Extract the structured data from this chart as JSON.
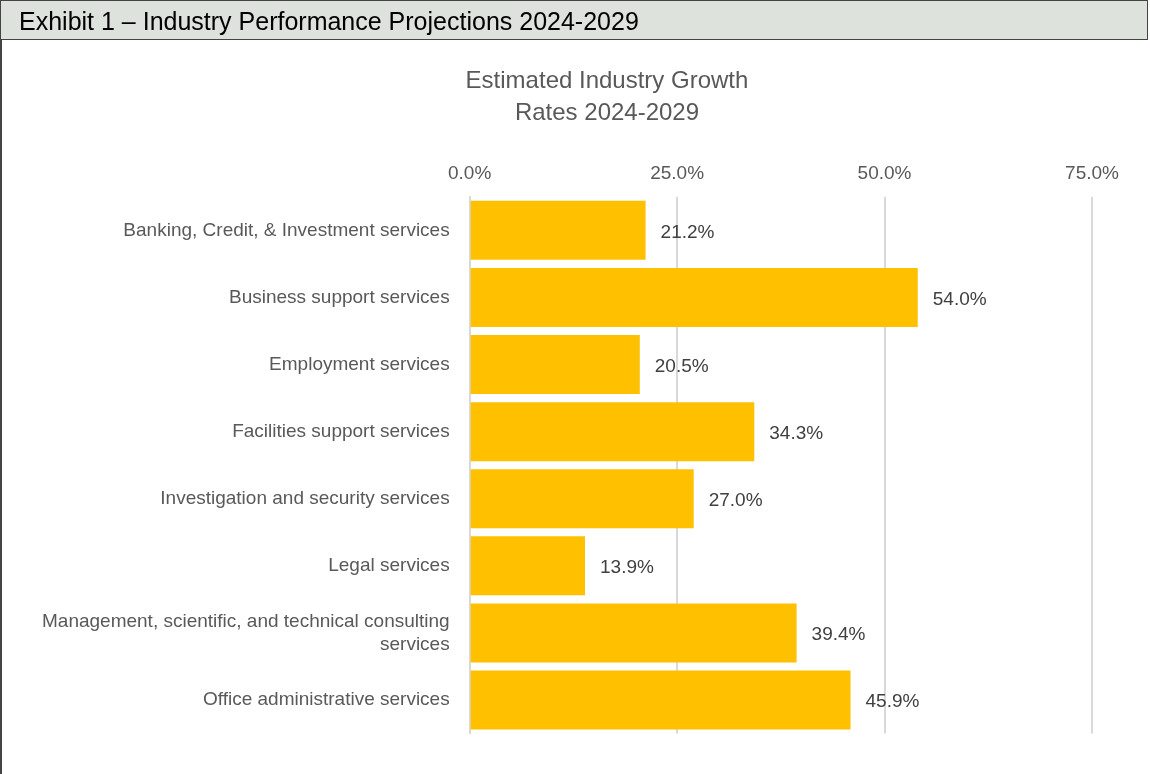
{
  "chart_data": {
    "type": "bar",
    "orientation": "horizontal",
    "title": "Exhibit 1 – Industry Performance Projections 2024-2029",
    "subtitle": "Estimated Industry Growth Rates 2024-2029",
    "categories": [
      "Banking, Credit, & Investment services",
      "Business support services",
      "Employment services",
      "Facilities support services",
      "Investigation and security services",
      "Legal services",
      "Management, scientific, and technical consulting services",
      "Office administrative services"
    ],
    "values": [
      21.2,
      54.0,
      20.5,
      34.3,
      27.0,
      13.9,
      39.4,
      45.9
    ],
    "value_labels": [
      "21.2%",
      "54.0%",
      "20.5%",
      "34.3%",
      "27.0%",
      "13.9%",
      "39.4%",
      "45.9%"
    ],
    "color": "#ffc000",
    "xlim": [
      0,
      75
    ],
    "xticks": [
      {
        "value": 0,
        "label": "0.0%"
      },
      {
        "value": 25,
        "label": "25.0%"
      },
      {
        "value": 50,
        "label": "50.0%"
      },
      {
        "value": 75,
        "label": "75.0%"
      }
    ],
    "grid": "x"
  }
}
